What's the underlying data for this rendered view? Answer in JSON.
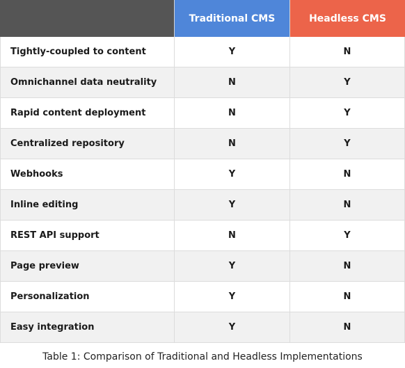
{
  "table": {
    "headers": {
      "feature": "",
      "traditional": "Traditional CMS",
      "headless": "Headless CMS"
    },
    "rows": [
      {
        "feature": "Tightly-coupled to content",
        "traditional": "Y",
        "headless": "N"
      },
      {
        "feature": "Omnichannel data neutrality",
        "traditional": "N",
        "headless": "Y"
      },
      {
        "feature": "Rapid content deployment",
        "traditional": "N",
        "headless": "Y"
      },
      {
        "feature": "Centralized repository",
        "traditional": "N",
        "headless": "Y"
      },
      {
        "feature": "Webhooks",
        "traditional": "Y",
        "headless": "N"
      },
      {
        "feature": "Inline editing",
        "traditional": "Y",
        "headless": "N"
      },
      {
        "feature": "REST API support",
        "traditional": "N",
        "headless": "Y"
      },
      {
        "feature": "Page preview",
        "traditional": "Y",
        "headless": "N"
      },
      {
        "feature": "Personalization",
        "traditional": "Y",
        "headless": "N"
      },
      {
        "feature": "Easy integration",
        "traditional": "Y",
        "headless": "N"
      }
    ]
  },
  "caption": "Table 1: Comparison of Traditional and Headless Implementations",
  "colors": {
    "header_blank": "#555555",
    "header_traditional": "#4f86d9",
    "header_headless": "#ec644a",
    "row_stripe": "#f1f1f1"
  }
}
